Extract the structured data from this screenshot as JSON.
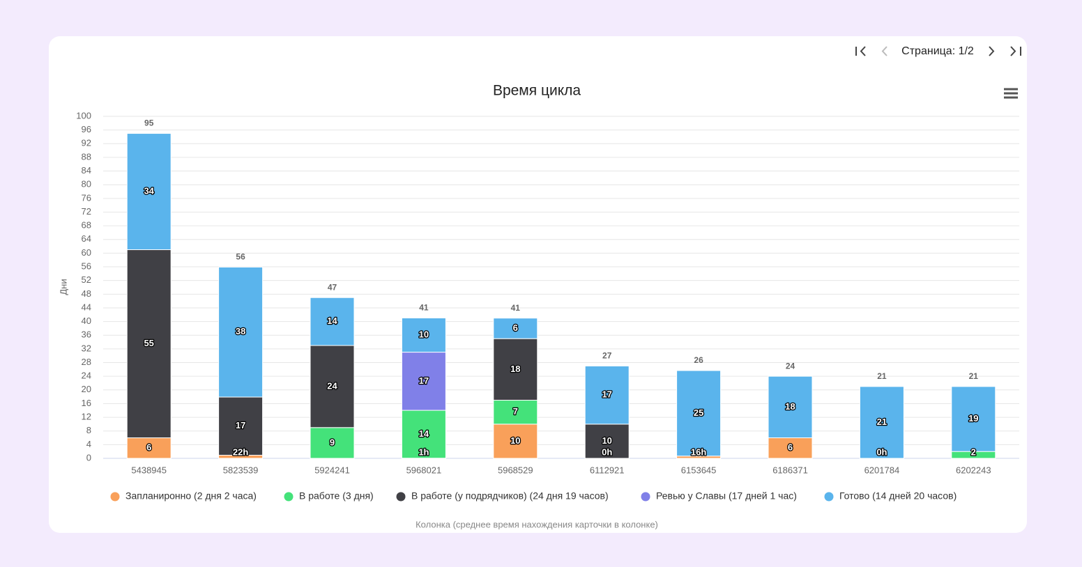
{
  "pager": {
    "label": "Страница: 1/2"
  },
  "chart_data": {
    "type": "stacked_bar",
    "title": "Время цикла",
    "ylabel": "Дни",
    "xlabel": "Колонка (среднее время нахождения карточки в колонке)",
    "categories": [
      "5438945",
      "5823539",
      "5924241",
      "5968021",
      "5968529",
      "6112921",
      "6153645",
      "6186371",
      "6201784",
      "6202243"
    ],
    "series": [
      {
        "name": "Запланиронно (2 дня 2 часа)",
        "color": "#f9a05a",
        "values": [
          6,
          0.9167,
          null,
          0.0417,
          10,
          0,
          0.6667,
          6,
          0,
          null
        ],
        "value_labels": [
          "6",
          "22h",
          null,
          "1h",
          "10",
          "0h",
          "16h",
          "6",
          "0h",
          null
        ]
      },
      {
        "name": "В работе (3 дня)",
        "color": "#44e27a",
        "values": [
          null,
          null,
          9,
          14,
          7,
          null,
          null,
          null,
          null,
          2
        ],
        "value_labels": [
          null,
          null,
          "9",
          "14",
          "7",
          null,
          null,
          null,
          null,
          "2"
        ]
      },
      {
        "name": "В работе (у подрядчиков) (24 дня 19 часов)",
        "color": "#404045",
        "values": [
          55,
          17,
          24,
          null,
          18,
          10,
          null,
          null,
          null,
          null
        ],
        "value_labels": [
          "55",
          "17",
          "24",
          null,
          "18",
          "10",
          null,
          null,
          null,
          null
        ]
      },
      {
        "name": "Ревью у Славы (17 дней 1 час)",
        "color": "#8080e8",
        "values": [
          null,
          null,
          null,
          17,
          null,
          null,
          null,
          null,
          null,
          null
        ],
        "value_labels": [
          null,
          null,
          null,
          "17",
          null,
          null,
          null,
          null,
          null,
          null
        ]
      },
      {
        "name": "Готово (14 дней 20 часов)",
        "color": "#5ab4ec",
        "values": [
          34,
          38,
          14,
          10,
          6,
          17,
          25,
          18,
          21,
          19
        ],
        "value_labels": [
          "34",
          "38",
          "14",
          "10",
          "6",
          "17",
          "25",
          "18",
          "21",
          "19"
        ]
      }
    ],
    "totals": [
      95,
      56,
      47,
      41,
      41,
      27,
      26,
      24,
      21,
      21
    ],
    "ylim": [
      0,
      100
    ],
    "yticks": [
      0,
      4,
      8,
      12,
      16,
      20,
      24,
      28,
      32,
      36,
      40,
      44,
      48,
      52,
      56,
      60,
      64,
      68,
      72,
      76,
      80,
      84,
      88,
      92,
      96,
      100
    ],
    "grid": true
  }
}
